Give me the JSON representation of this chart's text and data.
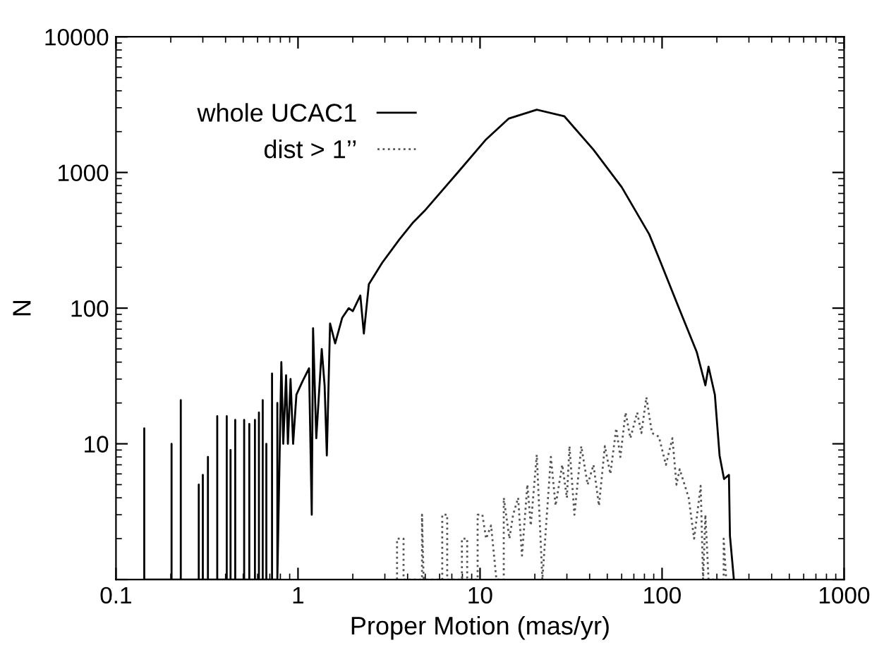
{
  "chart_data": {
    "type": "line",
    "xlabel": "Proper Motion (mas/yr)",
    "ylabel": "N",
    "log": "xy",
    "xlim": [
      0.1,
      1000
    ],
    "ylim": [
      1,
      10000
    ],
    "xticks": [
      0.1,
      1,
      10,
      100,
      1000
    ],
    "yticks": [
      {
        "value": 1,
        "label": null
      },
      10,
      100,
      1000,
      10000
    ],
    "legend": "top left",
    "grid": false,
    "marker": "none",
    "series": [
      {
        "name": "whole UCAC1",
        "color": "#000000",
        "line_style": "solid",
        "x": [
          0.143,
          0.143,
          0.143,
          0.202,
          0.202,
          0.202,
          0.227,
          0.227,
          0.227,
          0.285,
          0.285,
          0.285,
          0.3,
          0.3,
          0.3,
          0.32,
          0.32,
          0.32,
          0.36,
          0.36,
          0.36,
          0.406,
          0.406,
          0.406,
          0.426,
          0.426,
          0.426,
          0.452,
          0.452,
          0.452,
          0.506,
          0.506,
          0.506,
          0.54,
          0.54,
          0.54,
          0.58,
          0.58,
          0.58,
          0.61,
          0.61,
          0.61,
          0.64,
          0.64,
          0.64,
          0.67,
          0.67,
          0.67,
          0.72,
          0.72,
          0.72,
          0.77,
          0.77,
          0.77,
          0.81,
          0.83,
          0.86,
          0.88,
          0.91,
          0.94,
          0.98,
          1.06,
          1.15,
          1.19,
          1.21,
          1.26,
          1.35,
          1.4,
          1.44,
          1.5,
          1.6,
          1.75,
          1.9,
          2.0,
          2.2,
          2.3,
          2.45,
          2.9,
          3.6,
          4.3,
          4.95,
          7.5,
          10.7,
          14.4,
          20.5,
          29,
          42,
          60,
          85,
          96,
          122,
          155,
          173,
          180,
          195,
          207,
          219,
          233,
          236,
          248
        ],
        "values": [
          1,
          13,
          1,
          1,
          10,
          1,
          1,
          21,
          1,
          1,
          5,
          1,
          1,
          5.9,
          1,
          1,
          8,
          1,
          1,
          16,
          1,
          1,
          16,
          1,
          1,
          9,
          1,
          1,
          15,
          1,
          1,
          15,
          1,
          1,
          14,
          1,
          1,
          15,
          1,
          1,
          17,
          1,
          1,
          21,
          1,
          1,
          10,
          1,
          1,
          33,
          1,
          1,
          20,
          1,
          40,
          10,
          32,
          10,
          30,
          10,
          23,
          29,
          36,
          3,
          71,
          11,
          50,
          27,
          8.2,
          77,
          55,
          85,
          100,
          95,
          124,
          65,
          150,
          216,
          320,
          430,
          520,
          990,
          1730,
          2500,
          2900,
          2600,
          1470,
          780,
          350,
          235,
          105,
          47.6,
          27,
          37,
          23,
          8.2,
          5.5,
          5.9,
          2.1,
          1
        ]
      },
      {
        "name": "dist > 1’’",
        "color": "#555555",
        "line_style": "dotted",
        "x": [
          3.5,
          3.5,
          3.8,
          3.8,
          4.8,
          4.8,
          4.9,
          6.2,
          6.2,
          6.6,
          6.6,
          7.95,
          7.95,
          8.5,
          8.5,
          9.7,
          9.7,
          10.3,
          10.8,
          11.5,
          12.3,
          13.5,
          13.5,
          14.5,
          15.2,
          16.2,
          17,
          18.2,
          19,
          20.5,
          22,
          24.5,
          26,
          28.3,
          30,
          31,
          33,
          36,
          39,
          42,
          45,
          48.5,
          52,
          56,
          59,
          63,
          67,
          73,
          77,
          82,
          88,
          96,
          105,
          114,
          120,
          125,
          140,
          150,
          163,
          168,
          173,
          180,
          218,
          218,
          225
        ],
        "values": [
          1,
          2,
          2,
          1,
          1,
          3,
          1,
          1,
          3,
          3,
          1,
          1,
          2,
          2,
          1,
          1,
          3,
          3,
          2,
          2.5,
          1,
          1,
          4,
          2,
          3,
          4,
          1.5,
          5,
          2.5,
          8.3,
          1,
          8,
          3.5,
          7,
          4,
          9.6,
          3,
          9.6,
          5,
          7,
          3.5,
          9.6,
          6,
          13,
          8,
          17,
          11,
          17,
          12,
          22,
          12,
          11.3,
          7,
          11,
          5,
          6.5,
          4,
          2,
          4.9,
          1,
          3,
          1,
          1,
          2,
          1
        ]
      }
    ]
  }
}
